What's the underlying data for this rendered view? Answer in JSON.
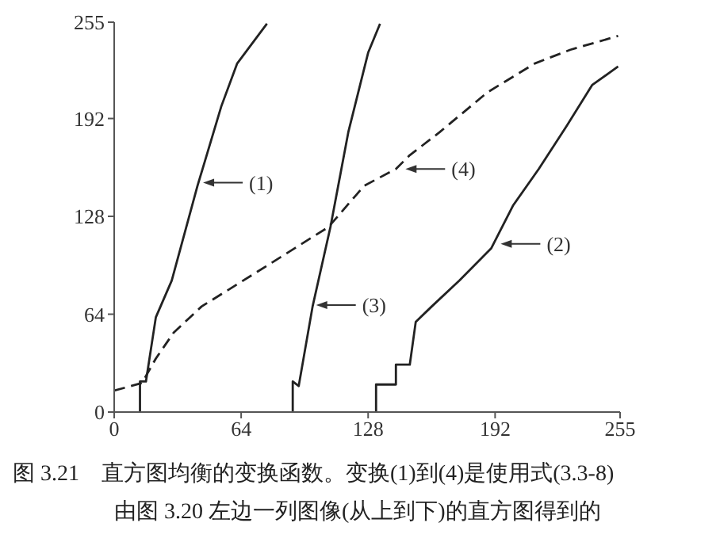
{
  "chart_data": {
    "type": "line",
    "xlim": [
      0,
      255
    ],
    "ylim": [
      0,
      255
    ],
    "xticks": [
      0,
      64,
      128,
      192,
      255
    ],
    "yticks": [
      0,
      64,
      128,
      192,
      255
    ],
    "series": [
      {
        "color": "#222222",
        "line_style": "solid",
        "x": [
          13,
          13,
          16,
          21,
          29,
          42,
          54,
          62,
          77
        ],
        "values": [
          0,
          20,
          20,
          62,
          86,
          148,
          200,
          228,
          254
        ]
      },
      {
        "color": "#222222",
        "line_style": "solid",
        "x": [
          132,
          132,
          142,
          142,
          149,
          152,
          160,
          174,
          190,
          201,
          214,
          228,
          241,
          254
        ],
        "values": [
          0,
          18,
          18,
          31,
          31,
          59,
          69,
          86,
          107,
          135,
          159,
          187,
          214,
          226
        ]
      },
      {
        "color": "#222222",
        "line_style": "solid",
        "x": [
          90,
          90,
          93,
          100,
          109,
          118,
          128,
          134
        ],
        "values": [
          0,
          20,
          17,
          69,
          121,
          183,
          235,
          254
        ]
      },
      {
        "color": "#222222",
        "line_style": "dashed",
        "x": [
          0,
          14,
          21,
          30,
          44,
          70,
          108,
          126,
          142,
          149,
          164,
          188,
          212,
          230,
          254
        ],
        "values": [
          14,
          19,
          35,
          52,
          69,
          90,
          121,
          148,
          159,
          168,
          183,
          209,
          228,
          237,
          246
        ]
      }
    ],
    "annotations": [
      {
        "text": "(1)",
        "x": 44,
        "y": 150
      },
      {
        "text": "(3)",
        "x": 101,
        "y": 70
      },
      {
        "text": "(4)",
        "x": 146,
        "y": 159
      },
      {
        "text": "(2)",
        "x": 194,
        "y": 110
      },
      "图 3.21　直方图均衡的变换函数。变换(1)到(4)是使用式(3.3-8)",
      "由图 3.20 左边一列图像(从上到下)的直方图得到的"
    ]
  }
}
